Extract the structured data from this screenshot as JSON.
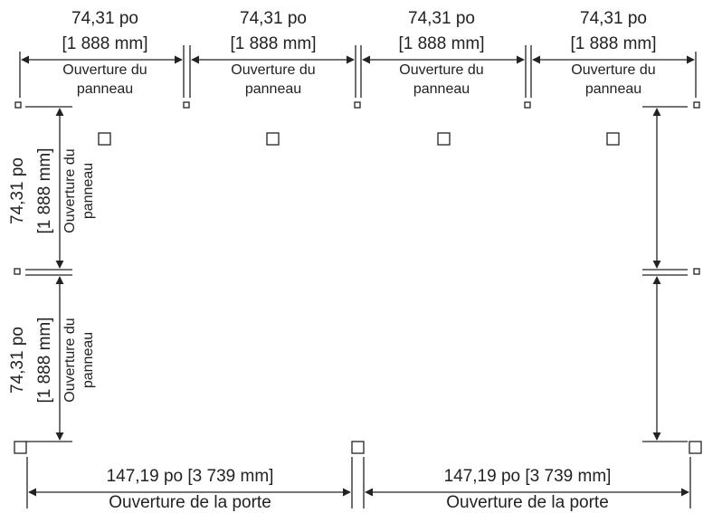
{
  "top_panels": [
    {
      "imperial": "74,31 po",
      "metric": "[1 888 mm]",
      "caption_line1": "Ouverture du",
      "caption_line2": "panneau"
    },
    {
      "imperial": "74,31 po",
      "metric": "[1 888 mm]",
      "caption_line1": "Ouverture du",
      "caption_line2": "panneau"
    },
    {
      "imperial": "74,31 po",
      "metric": "[1 888 mm]",
      "caption_line1": "Ouverture du",
      "caption_line2": "panneau"
    },
    {
      "imperial": "74,31 po",
      "metric": "[1 888 mm]",
      "caption_line1": "Ouverture du",
      "caption_line2": "panneau"
    }
  ],
  "side_panels": [
    {
      "imperial": "74,31 po",
      "metric": "[1 888 mm]",
      "caption_line1": "Ouverture du",
      "caption_line2": "panneau"
    },
    {
      "imperial": "74,31 po",
      "metric": "[1 888 mm]",
      "caption_line1": "Ouverture du",
      "caption_line2": "panneau"
    }
  ],
  "doors": [
    {
      "dimension": "147,19 po [3 739 mm]",
      "caption": "Ouverture de la porte"
    },
    {
      "dimension": "147,19 po [3 739 mm]",
      "caption": "Ouverture de la porte"
    }
  ],
  "colors": {
    "line": "#222222",
    "background": "#ffffff"
  }
}
